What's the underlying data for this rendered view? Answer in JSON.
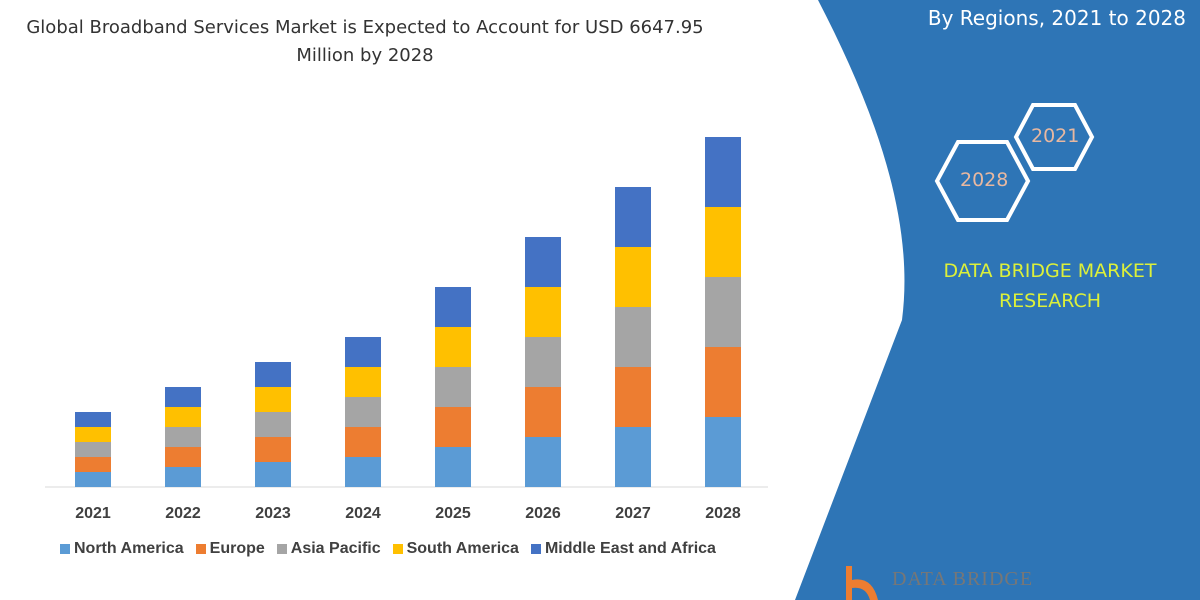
{
  "title": "Global Broadband Services  Market is Expected to Account for USD 6647.95 Million by 2028",
  "panel": {
    "subtitle": "By Regions, 2021 to 2028",
    "hex_labels": [
      "2021",
      "2028"
    ],
    "brand": "DATA BRIDGE MARKET RESEARCH",
    "logo_text": "DATA BRIDGE",
    "color": "#2e75b6"
  },
  "chart_data": {
    "type": "bar",
    "stacked": true,
    "categories": [
      "2021",
      "2022",
      "2023",
      "2024",
      "2025",
      "2026",
      "2027",
      "2028"
    ],
    "series": [
      {
        "name": "North America",
        "color": "#5b9bd5",
        "values": [
          15,
          20,
          25,
          30,
          40,
          50,
          60,
          70
        ]
      },
      {
        "name": "Europe",
        "color": "#ed7d31",
        "values": [
          15,
          20,
          25,
          30,
          40,
          50,
          60,
          70
        ]
      },
      {
        "name": "Asia Pacific",
        "color": "#a5a5a5",
        "values": [
          15,
          20,
          25,
          30,
          40,
          50,
          60,
          70
        ]
      },
      {
        "name": "South America",
        "color": "#ffc000",
        "values": [
          15,
          20,
          25,
          30,
          40,
          50,
          60,
          70
        ]
      },
      {
        "name": "Middle East and Africa",
        "color": "#4472c4",
        "values": [
          15,
          20,
          25,
          30,
          40,
          50,
          60,
          70
        ]
      }
    ],
    "legend_position": "bottom",
    "grid": false,
    "y_axis_shown": false
  }
}
